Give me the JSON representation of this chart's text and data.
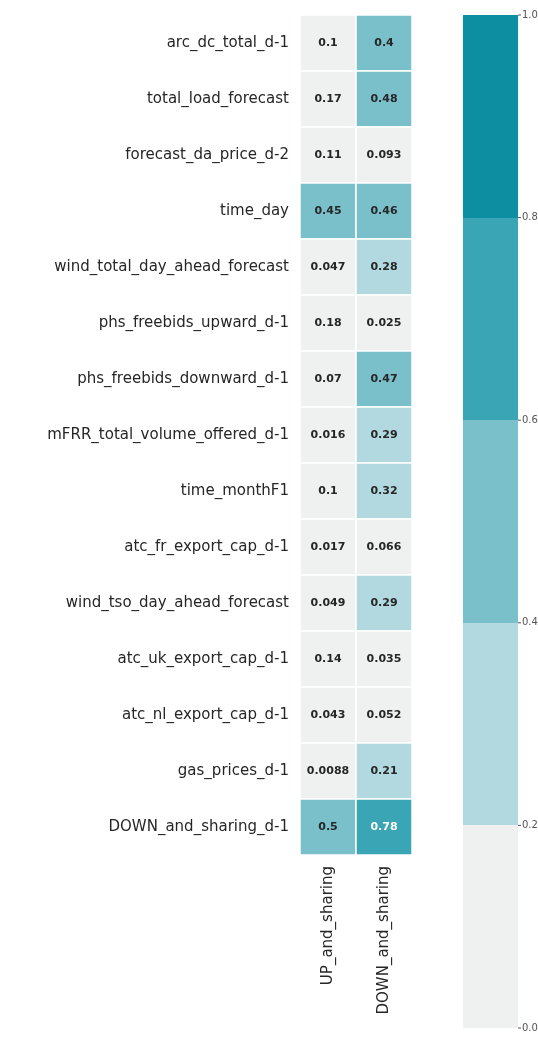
{
  "chart_data": {
    "type": "heatmap",
    "categories": [
      "UP_and_sharing",
      "DOWN_and_sharing"
    ],
    "y_categories": [
      "arc_dc_total_d-1",
      "total_load_forecast",
      "forecast_da_price_d-2",
      "time_day",
      "wind_total_day_ahead_forecast",
      "phs_freebids_upward_d-1",
      "phs_freebids_downward_d-1",
      "mFRR_total_volume_offered_d-1",
      "time_monthF1",
      "atc_fr_export_cap_d-1",
      "wind_tso_day_ahead_forecast",
      "atc_uk_export_cap_d-1",
      "atc_nl_export_cap_d-1",
      "gas_prices_d-1",
      "DOWN_and_sharing_d-1"
    ],
    "cells": [
      [
        0.1,
        0.4
      ],
      [
        0.17,
        0.48
      ],
      [
        0.11,
        0.093
      ],
      [
        0.45,
        0.46
      ],
      [
        0.047,
        0.28
      ],
      [
        0.18,
        0.025
      ],
      [
        0.07,
        0.47
      ],
      [
        0.016,
        0.29
      ],
      [
        0.1,
        0.32
      ],
      [
        0.017,
        0.066
      ],
      [
        0.049,
        0.29
      ],
      [
        0.14,
        0.035
      ],
      [
        0.043,
        0.052
      ],
      [
        0.0088,
        0.21
      ],
      [
        0.5,
        0.78
      ]
    ],
    "data_labels": true,
    "colors": [
      "#eff1f0",
      "#b1d9df",
      "#79c0cb",
      "#3aa6b5",
      "#0e8fa1"
    ],
    "clim": [
      0,
      1
    ],
    "cticks": [
      {
        "value": 0,
        "label": "0.0"
      },
      {
        "value": 0.2,
        "label": "0.2"
      },
      {
        "value": 0.4,
        "label": "0.4"
      },
      {
        "value": 0.6,
        "label": "0.6"
      },
      {
        "value": 0.8,
        "label": "0.8"
      },
      {
        "value": 1,
        "label": "1.0"
      }
    ]
  }
}
